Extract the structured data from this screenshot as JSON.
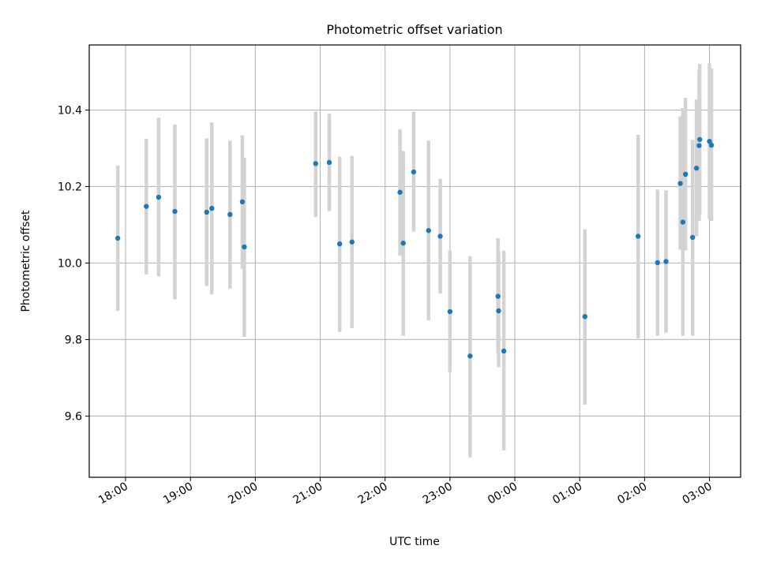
{
  "chart_data": {
    "type": "scatter",
    "title": "Photometric offset variation",
    "xlabel": "UTC time",
    "ylabel": "Photometric offset",
    "x_tick_labels": [
      "18:00",
      "19:00",
      "20:00",
      "21:00",
      "22:00",
      "23:00",
      "00:00",
      "01:00",
      "02:00",
      "03:00"
    ],
    "x_tick_values": [
      18,
      19,
      20,
      21,
      22,
      23,
      24,
      25,
      26,
      27
    ],
    "xlim": [
      17.44,
      27.48
    ],
    "y_tick_labels": [
      "9.6",
      "9.8",
      "10.0",
      "10.2",
      "10.4"
    ],
    "y_tick_values": [
      9.6,
      9.8,
      10.0,
      10.2,
      10.4
    ],
    "ylim": [
      9.44,
      10.57
    ],
    "grid": true,
    "colors": {
      "marker": "#1f77b4",
      "errorbar": "#d3d3d3",
      "grid": "#b0b0b0"
    },
    "series": [
      {
        "points": [
          {
            "x": 17.88,
            "y": 10.065,
            "lo": 9.875,
            "hi": 10.255
          },
          {
            "x": 18.32,
            "y": 10.148,
            "lo": 9.97,
            "hi": 10.325
          },
          {
            "x": 18.51,
            "y": 10.172,
            "lo": 9.965,
            "hi": 10.38
          },
          {
            "x": 18.76,
            "y": 10.135,
            "lo": 9.905,
            "hi": 10.362
          },
          {
            "x": 19.25,
            "y": 10.133,
            "lo": 9.94,
            "hi": 10.326
          },
          {
            "x": 19.33,
            "y": 10.143,
            "lo": 9.918,
            "hi": 10.368
          },
          {
            "x": 19.61,
            "y": 10.127,
            "lo": 9.933,
            "hi": 10.32
          },
          {
            "x": 19.8,
            "y": 10.16,
            "lo": 9.985,
            "hi": 10.334
          },
          {
            "x": 19.83,
            "y": 10.042,
            "lo": 9.807,
            "hi": 10.275
          },
          {
            "x": 20.93,
            "y": 10.26,
            "lo": 10.12,
            "hi": 10.396
          },
          {
            "x": 21.14,
            "y": 10.263,
            "lo": 10.136,
            "hi": 10.39
          },
          {
            "x": 21.3,
            "y": 10.05,
            "lo": 9.82,
            "hi": 10.278
          },
          {
            "x": 21.49,
            "y": 10.055,
            "lo": 9.83,
            "hi": 10.28
          },
          {
            "x": 22.23,
            "y": 10.185,
            "lo": 10.02,
            "hi": 10.35
          },
          {
            "x": 22.28,
            "y": 10.052,
            "lo": 9.81,
            "hi": 10.293
          },
          {
            "x": 22.44,
            "y": 10.238,
            "lo": 10.082,
            "hi": 10.396
          },
          {
            "x": 22.67,
            "y": 10.085,
            "lo": 9.85,
            "hi": 10.32
          },
          {
            "x": 22.85,
            "y": 10.07,
            "lo": 9.92,
            "hi": 10.22
          },
          {
            "x": 23.0,
            "y": 9.873,
            "lo": 9.715,
            "hi": 10.033
          },
          {
            "x": 23.31,
            "y": 9.757,
            "lo": 9.492,
            "hi": 10.018
          },
          {
            "x": 23.74,
            "y": 9.913,
            "lo": 9.763,
            "hi": 10.065
          },
          {
            "x": 23.75,
            "y": 9.875,
            "lo": 9.728,
            "hi": 10.03
          },
          {
            "x": 23.83,
            "y": 9.77,
            "lo": 9.51,
            "hi": 10.032
          },
          {
            "x": 25.08,
            "y": 9.86,
            "lo": 9.63,
            "hi": 10.088
          },
          {
            "x": 25.9,
            "y": 10.07,
            "lo": 9.803,
            "hi": 10.335
          },
          {
            "x": 26.2,
            "y": 10.001,
            "lo": 9.81,
            "hi": 10.192
          },
          {
            "x": 26.33,
            "y": 10.004,
            "lo": 9.818,
            "hi": 10.19
          },
          {
            "x": 26.55,
            "y": 10.208,
            "lo": 10.035,
            "hi": 10.383
          },
          {
            "x": 26.59,
            "y": 10.107,
            "lo": 9.81,
            "hi": 10.405
          },
          {
            "x": 26.63,
            "y": 10.232,
            "lo": 10.033,
            "hi": 10.432
          },
          {
            "x": 26.74,
            "y": 10.067,
            "lo": 9.81,
            "hi": 10.322
          },
          {
            "x": 26.8,
            "y": 10.248,
            "lo": 10.07,
            "hi": 10.428
          },
          {
            "x": 26.84,
            "y": 10.307,
            "lo": 10.11,
            "hi": 10.505
          },
          {
            "x": 26.85,
            "y": 10.323,
            "lo": 10.125,
            "hi": 10.52
          },
          {
            "x": 27.0,
            "y": 10.318,
            "lo": 10.115,
            "hi": 10.522
          },
          {
            "x": 27.03,
            "y": 10.308,
            "lo": 10.11,
            "hi": 10.508
          }
        ]
      }
    ]
  }
}
